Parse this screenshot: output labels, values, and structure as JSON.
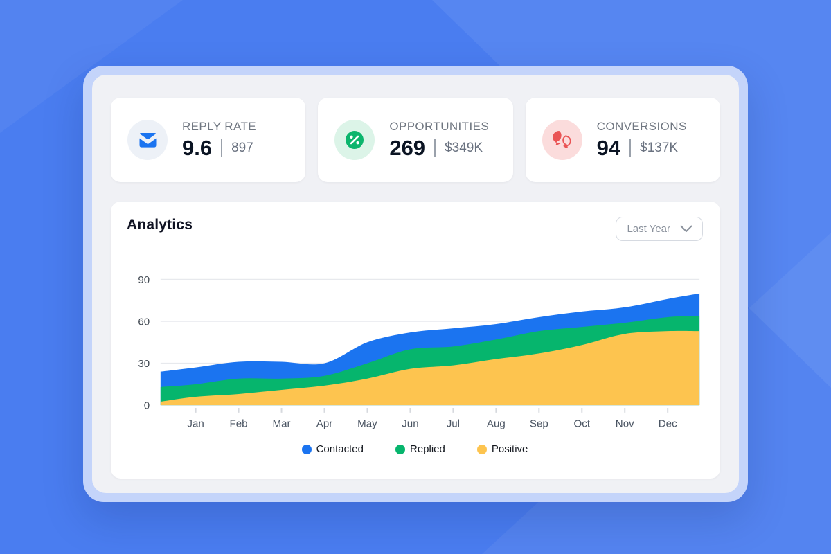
{
  "background": {
    "base_color": "#4A7DF0",
    "shape_color": "rgba(255,255,255,0.07)"
  },
  "frame": {
    "border_color": "#C4D4FA",
    "panel_color": "#F0F1F5"
  },
  "stats": [
    {
      "icon": "mail-icon",
      "icon_color": "#1B74F0",
      "icon_bg": "#EDF1F7",
      "label": "REPLY RATE",
      "value": "9.6",
      "secondary": "897"
    },
    {
      "icon": "percent-icon",
      "icon_color": "#0CB56D",
      "icon_bg": "#DCF4E8",
      "label": "OPPORTUNITIES",
      "value": "269",
      "secondary": "$349K"
    },
    {
      "icon": "chat-bubbles-icon",
      "icon_color": "#EA5455",
      "icon_bg": "#FBDCDC",
      "label": "CONVERSIONS",
      "value": "94",
      "secondary": "$137K"
    }
  ],
  "analytics": {
    "title": "Analytics",
    "range_selector": {
      "value": "Last Year"
    }
  },
  "chart_data": {
    "type": "area",
    "stacked": true,
    "title": "Analytics",
    "x": [
      "Jan",
      "Feb",
      "Mar",
      "Apr",
      "May",
      "Jun",
      "Jul",
      "Aug",
      "Sep",
      "Oct",
      "Nov",
      "Dec"
    ],
    "series": [
      {
        "name": "Contacted",
        "color": "#1B74F0",
        "values": [
          12,
          12,
          12,
          9,
          15,
          12,
          13,
          11,
          10,
          11,
          11,
          13
        ]
      },
      {
        "name": "Replied",
        "color": "#06B56D",
        "values": [
          9,
          11,
          8,
          7,
          11,
          14,
          13.5,
          14,
          16,
          13,
          8,
          10
        ]
      },
      {
        "name": "Positive",
        "color": "#FDC44F",
        "values": [
          6,
          8,
          11,
          14,
          19,
          26,
          28.5,
          33,
          37,
          43,
          51,
          53
        ]
      }
    ],
    "render": {
      "cumulative_tops": {
        "Contacted": [
          24,
          27,
          31,
          31,
          30,
          45,
          52,
          55,
          58,
          63,
          67,
          70,
          76,
          80
        ],
        "Replied": [
          13,
          15,
          19,
          19,
          21,
          30,
          40,
          42,
          47,
          53,
          56,
          59,
          63,
          64
        ],
        "Positive": [
          2.5,
          6,
          8,
          11,
          14,
          19,
          26,
          28.5,
          33,
          37,
          43,
          51,
          53,
          53
        ]
      },
      "note_edges": "first and last entries are plot left/right edge values beyond Jan/Dec"
    },
    "ylim": [
      0,
      90
    ],
    "yticks": [
      0,
      30,
      60,
      90
    ],
    "grid": "horizontal",
    "legend_position": "bottom",
    "colors": {
      "gridline": "#E7E9ED",
      "tick": "#D6D9DE",
      "y_label": "#3F4750",
      "x_label": "#4B5563"
    }
  }
}
